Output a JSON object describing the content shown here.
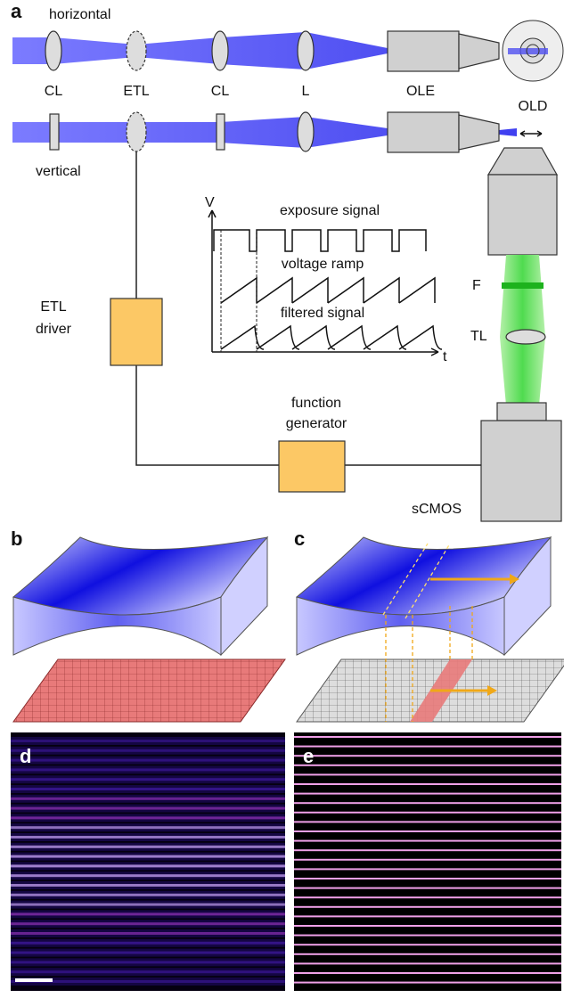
{
  "panel_a": {
    "label": "a",
    "beam_labels": {
      "horizontal": "horizontal",
      "vertical": "vertical"
    },
    "components": {
      "cl1": "CL",
      "etl": "ETL",
      "cl2": "CL",
      "l": "L",
      "ole": "OLE",
      "old": "OLD",
      "f": "F",
      "tl": "TL",
      "scmos": "sCMOS"
    },
    "boxes": {
      "etl_driver": [
        "ETL",
        "driver"
      ],
      "function_generator": [
        "function",
        "generator"
      ]
    },
    "plot": {
      "y_axis": "V",
      "x_axis": "t",
      "signals": [
        "exposure signal",
        "voltage ramp",
        "filtered signal"
      ]
    }
  },
  "panel_b": {
    "label": "b"
  },
  "panel_c": {
    "label": "c"
  },
  "panel_d": {
    "label": "d"
  },
  "panel_e": {
    "label": "e"
  }
}
